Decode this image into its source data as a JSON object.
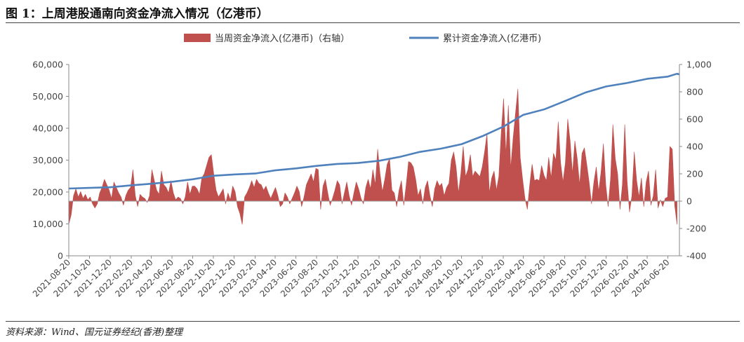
{
  "figure": {
    "title": "图 1：上周港股通南向资金净流入情况（亿港币）",
    "source": "资料来源：Wind、国元证券经纪(香港)整理"
  },
  "chart_data": {
    "type": "bar+line",
    "legend_position": "top",
    "grid": false,
    "colors": {
      "bar": "#C0504D",
      "line": "#4F81BD",
      "axis": "#888888"
    },
    "series": [
      {
        "name": "当周资金净流入(亿港币)（右轴）",
        "type": "area",
        "axis": "right"
      },
      {
        "name": "累计资金净流入(亿港币)",
        "type": "line",
        "axis": "left"
      }
    ],
    "left_axis": {
      "min": 0,
      "max": 60000,
      "ticks": [
        "0",
        "10,000",
        "20,000",
        "30,000",
        "40,000",
        "50,000",
        "60,000"
      ]
    },
    "right_axis": {
      "min": -400,
      "max": 1000,
      "ticks": [
        "-400",
        "-200",
        "0",
        "200",
        "400",
        "600",
        "800",
        "1,000"
      ]
    },
    "x_ticks": [
      "2021-08-20",
      "2021-10-20",
      "2021-12-20",
      "2022-02-20",
      "2022-04-20",
      "2022-06-20",
      "2022-08-20",
      "2022-10-20",
      "2022-12-20",
      "2023-02-20",
      "2023-04-20",
      "2023-06-20",
      "2023-08-20",
      "2023-10-20",
      "2023-12-20",
      "2024-02-20",
      "2024-04-20",
      "2024-06-20",
      "2024-08-20",
      "2024-10-20",
      "2024-12-20",
      "2025-02-20",
      "2025-04-20",
      "2025-06-20",
      "2025-08-20",
      "2025-10-20",
      "2025-12-20",
      "2026-02-20",
      "2026-04-20",
      "2026-06-20"
    ],
    "x_range": [
      "2021-08-20",
      "2026-07-24"
    ],
    "weekly_flow": [
      [
        "2021-08-20",
        -170
      ],
      [
        "2021-08-27",
        -100
      ],
      [
        "2021-09-03",
        40
      ],
      [
        "2021-09-10",
        90
      ],
      [
        "2021-09-17",
        30
      ],
      [
        "2021-09-24",
        70
      ],
      [
        "2021-10-01",
        20
      ],
      [
        "2021-10-08",
        50
      ],
      [
        "2021-10-15",
        10
      ],
      [
        "2021-10-22",
        30
      ],
      [
        "2021-10-29",
        -20
      ],
      [
        "2021-11-05",
        -50
      ],
      [
        "2021-11-12",
        -20
      ],
      [
        "2021-11-19",
        60
      ],
      [
        "2021-11-26",
        100
      ],
      [
        "2021-12-03",
        160
      ],
      [
        "2021-12-10",
        120
      ],
      [
        "2021-12-17",
        80
      ],
      [
        "2021-12-24",
        20
      ],
      [
        "2021-12-31",
        140
      ],
      [
        "2022-01-07",
        100
      ],
      [
        "2022-01-14",
        60
      ],
      [
        "2022-01-21",
        30
      ],
      [
        "2022-01-28",
        -30
      ],
      [
        "2022-02-04",
        40
      ],
      [
        "2022-02-11",
        80
      ],
      [
        "2022-02-18",
        100
      ],
      [
        "2022-02-25",
        230
      ],
      [
        "2022-03-04",
        40
      ],
      [
        "2022-03-11",
        -40
      ],
      [
        "2022-03-18",
        50
      ],
      [
        "2022-03-25",
        30
      ],
      [
        "2022-04-01",
        20
      ],
      [
        "2022-04-08",
        -10
      ],
      [
        "2022-04-15",
        40
      ],
      [
        "2022-04-22",
        230
      ],
      [
        "2022-04-29",
        150
      ],
      [
        "2022-05-06",
        80
      ],
      [
        "2022-05-13",
        50
      ],
      [
        "2022-05-20",
        220
      ],
      [
        "2022-05-27",
        120
      ],
      [
        "2022-06-03",
        100
      ],
      [
        "2022-06-10",
        60
      ],
      [
        "2022-06-17",
        150
      ],
      [
        "2022-06-24",
        60
      ],
      [
        "2022-07-01",
        10
      ],
      [
        "2022-07-08",
        30
      ],
      [
        "2022-07-15",
        20
      ],
      [
        "2022-07-22",
        -20
      ],
      [
        "2022-07-29",
        30
      ],
      [
        "2022-08-05",
        140
      ],
      [
        "2022-08-12",
        50
      ],
      [
        "2022-08-19",
        110
      ],
      [
        "2022-08-26",
        110
      ],
      [
        "2022-09-02",
        90
      ],
      [
        "2022-09-09",
        50
      ],
      [
        "2022-09-16",
        170
      ],
      [
        "2022-09-23",
        200
      ],
      [
        "2022-09-30",
        260
      ],
      [
        "2022-10-07",
        320
      ],
      [
        "2022-10-14",
        340
      ],
      [
        "2022-10-21",
        200
      ],
      [
        "2022-10-28",
        80
      ],
      [
        "2022-11-04",
        30
      ],
      [
        "2022-11-11",
        60
      ],
      [
        "2022-11-18",
        90
      ],
      [
        "2022-11-25",
        -20
      ],
      [
        "2022-12-02",
        60
      ],
      [
        "2022-12-09",
        10
      ],
      [
        "2022-12-16",
        110
      ],
      [
        "2022-12-23",
        70
      ],
      [
        "2022-12-30",
        -40
      ],
      [
        "2023-01-06",
        -90
      ],
      [
        "2023-01-13",
        -170
      ],
      [
        "2023-01-20",
        30
      ],
      [
        "2023-01-27",
        60
      ],
      [
        "2023-02-03",
        100
      ],
      [
        "2023-02-10",
        150
      ],
      [
        "2023-02-17",
        100
      ],
      [
        "2023-02-24",
        160
      ],
      [
        "2023-03-03",
        130
      ],
      [
        "2023-03-10",
        120
      ],
      [
        "2023-03-17",
        80
      ],
      [
        "2023-03-24",
        110
      ],
      [
        "2023-03-31",
        60
      ],
      [
        "2023-04-07",
        20
      ],
      [
        "2023-04-14",
        60
      ],
      [
        "2023-04-21",
        100
      ],
      [
        "2023-04-28",
        40
      ],
      [
        "2023-05-05",
        -40
      ],
      [
        "2023-05-12",
        -20
      ],
      [
        "2023-05-19",
        60
      ],
      [
        "2023-05-26",
        30
      ],
      [
        "2023-06-02",
        -20
      ],
      [
        "2023-06-09",
        20
      ],
      [
        "2023-06-16",
        60
      ],
      [
        "2023-06-23",
        110
      ],
      [
        "2023-06-30",
        70
      ],
      [
        "2023-07-07",
        -40
      ],
      [
        "2023-07-14",
        30
      ],
      [
        "2023-07-21",
        120
      ],
      [
        "2023-07-28",
        160
      ],
      [
        "2023-08-04",
        200
      ],
      [
        "2023-08-11",
        140
      ],
      [
        "2023-08-18",
        240
      ],
      [
        "2023-08-25",
        230
      ],
      [
        "2023-09-01",
        -60
      ],
      [
        "2023-09-08",
        110
      ],
      [
        "2023-09-15",
        160
      ],
      [
        "2023-09-22",
        60
      ],
      [
        "2023-09-29",
        -30
      ],
      [
        "2023-10-06",
        20
      ],
      [
        "2023-10-13",
        80
      ],
      [
        "2023-10-20",
        150
      ],
      [
        "2023-10-27",
        120
      ],
      [
        "2023-11-03",
        -20
      ],
      [
        "2023-11-10",
        60
      ],
      [
        "2023-11-17",
        140
      ],
      [
        "2023-11-24",
        40
      ],
      [
        "2023-12-01",
        -30
      ],
      [
        "2023-12-08",
        60
      ],
      [
        "2023-12-15",
        140
      ],
      [
        "2023-12-22",
        90
      ],
      [
        "2023-12-29",
        20
      ],
      [
        "2024-01-05",
        -20
      ],
      [
        "2024-01-12",
        100
      ],
      [
        "2024-01-19",
        160
      ],
      [
        "2024-01-26",
        90
      ],
      [
        "2024-02-02",
        230
      ],
      [
        "2024-02-09",
        120
      ],
      [
        "2024-02-16",
        380
      ],
      [
        "2024-02-23",
        200
      ],
      [
        "2024-03-01",
        70
      ],
      [
        "2024-03-08",
        160
      ],
      [
        "2024-03-15",
        270
      ],
      [
        "2024-03-22",
        310
      ],
      [
        "2024-03-29",
        80
      ],
      [
        "2024-04-05",
        60
      ],
      [
        "2024-04-12",
        -40
      ],
      [
        "2024-04-19",
        80
      ],
      [
        "2024-04-26",
        150
      ],
      [
        "2024-05-03",
        -30
      ],
      [
        "2024-05-10",
        120
      ],
      [
        "2024-05-17",
        290
      ],
      [
        "2024-05-24",
        280
      ],
      [
        "2024-05-31",
        250
      ],
      [
        "2024-06-07",
        160
      ],
      [
        "2024-06-14",
        40
      ],
      [
        "2024-06-21",
        90
      ],
      [
        "2024-06-28",
        -20
      ],
      [
        "2024-07-05",
        100
      ],
      [
        "2024-07-12",
        150
      ],
      [
        "2024-07-19",
        40
      ],
      [
        "2024-07-26",
        -40
      ],
      [
        "2024-08-02",
        90
      ],
      [
        "2024-08-09",
        150
      ],
      [
        "2024-08-16",
        110
      ],
      [
        "2024-08-23",
        130
      ],
      [
        "2024-08-30",
        40
      ],
      [
        "2024-09-06",
        100
      ],
      [
        "2024-09-13",
        130
      ],
      [
        "2024-09-20",
        300
      ],
      [
        "2024-09-27",
        360
      ],
      [
        "2024-10-04",
        250
      ],
      [
        "2024-10-11",
        60
      ],
      [
        "2024-10-18",
        200
      ],
      [
        "2024-10-25",
        400
      ],
      [
        "2024-11-01",
        180
      ],
      [
        "2024-11-08",
        230
      ],
      [
        "2024-11-15",
        340
      ],
      [
        "2024-11-22",
        180
      ],
      [
        "2024-11-29",
        220
      ],
      [
        "2024-12-06",
        200
      ],
      [
        "2024-12-13",
        180
      ],
      [
        "2024-12-20",
        250
      ],
      [
        "2024-12-27",
        360
      ],
      [
        "2025-01-03",
        490
      ],
      [
        "2025-01-10",
        60
      ],
      [
        "2025-01-17",
        170
      ],
      [
        "2025-01-24",
        220
      ],
      [
        "2025-01-31",
        80
      ],
      [
        "2025-02-07",
        180
      ],
      [
        "2025-02-14",
        500
      ],
      [
        "2025-02-21",
        750
      ],
      [
        "2025-02-28",
        340
      ],
      [
        "2025-03-07",
        700
      ],
      [
        "2025-03-14",
        240
      ],
      [
        "2025-03-21",
        460
      ],
      [
        "2025-03-28",
        640
      ],
      [
        "2025-04-04",
        820
      ],
      [
        "2025-04-11",
        320
      ],
      [
        "2025-04-18",
        160
      ],
      [
        "2025-04-25",
        20
      ],
      [
        "2025-05-02",
        -60
      ],
      [
        "2025-05-09",
        120
      ],
      [
        "2025-05-16",
        270
      ],
      [
        "2025-05-23",
        150
      ],
      [
        "2025-05-30",
        160
      ],
      [
        "2025-06-06",
        150
      ],
      [
        "2025-06-13",
        260
      ],
      [
        "2025-06-20",
        190
      ],
      [
        "2025-06-27",
        150
      ],
      [
        "2025-07-04",
        320
      ],
      [
        "2025-07-11",
        170
      ],
      [
        "2025-07-18",
        350
      ],
      [
        "2025-07-25",
        300
      ],
      [
        "2025-08-01",
        580
      ],
      [
        "2025-08-08",
        280
      ],
      [
        "2025-08-15",
        140
      ],
      [
        "2025-08-22",
        280
      ],
      [
        "2025-08-29",
        600
      ],
      [
        "2025-09-05",
        440
      ],
      [
        "2025-09-12",
        200
      ],
      [
        "2025-09-19",
        440
      ],
      [
        "2025-09-26",
        310
      ],
      [
        "2025-10-03",
        120
      ],
      [
        "2025-10-10",
        350
      ],
      [
        "2025-10-17",
        390
      ],
      [
        "2025-10-24",
        270
      ],
      [
        "2025-10-31",
        140
      ],
      [
        "2025-11-07",
        -20
      ],
      [
        "2025-11-14",
        140
      ],
      [
        "2025-11-21",
        250
      ],
      [
        "2025-11-28",
        70
      ],
      [
        "2025-12-05",
        210
      ],
      [
        "2025-12-12",
        420
      ],
      [
        "2025-12-19",
        120
      ],
      [
        "2025-12-26",
        -40
      ],
      [
        "2026-01-02",
        160
      ],
      [
        "2026-01-09",
        560
      ],
      [
        "2026-01-16",
        310
      ],
      [
        "2026-01-23",
        200
      ],
      [
        "2026-01-30",
        -60
      ],
      [
        "2026-02-06",
        120
      ],
      [
        "2026-02-13",
        560
      ],
      [
        "2026-02-20",
        140
      ],
      [
        "2026-02-27",
        -80
      ],
      [
        "2026-03-06",
        40
      ],
      [
        "2026-03-13",
        360
      ],
      [
        "2026-03-20",
        150
      ],
      [
        "2026-03-27",
        30
      ],
      [
        "2026-04-03",
        170
      ],
      [
        "2026-04-10",
        -40
      ],
      [
        "2026-04-17",
        140
      ],
      [
        "2026-04-24",
        220
      ],
      [
        "2026-05-01",
        -30
      ],
      [
        "2026-05-08",
        40
      ],
      [
        "2026-05-15",
        230
      ],
      [
        "2026-05-22",
        -50
      ],
      [
        "2026-05-29",
        10
      ],
      [
        "2026-06-05",
        -40
      ],
      [
        "2026-06-12",
        20
      ],
      [
        "2026-06-19",
        30
      ],
      [
        "2026-06-26",
        400
      ],
      [
        "2026-07-03",
        380
      ],
      [
        "2026-07-10",
        -30
      ],
      [
        "2026-07-17",
        -170
      ]
    ],
    "cumulative": [
      [
        "2021-08-20",
        21100
      ],
      [
        "2021-10-20",
        21300
      ],
      [
        "2021-12-20",
        21500
      ],
      [
        "2022-02-20",
        22100
      ],
      [
        "2022-04-20",
        22600
      ],
      [
        "2022-06-20",
        23200
      ],
      [
        "2022-08-20",
        24000
      ],
      [
        "2022-10-20",
        25100
      ],
      [
        "2022-12-20",
        25500
      ],
      [
        "2023-02-20",
        25800
      ],
      [
        "2023-04-20",
        26800
      ],
      [
        "2023-06-20",
        27400
      ],
      [
        "2023-08-20",
        28200
      ],
      [
        "2023-10-20",
        28800
      ],
      [
        "2023-12-20",
        29100
      ],
      [
        "2024-02-20",
        29800
      ],
      [
        "2024-04-20",
        31000
      ],
      [
        "2024-06-20",
        32600
      ],
      [
        "2024-08-20",
        33600
      ],
      [
        "2024-10-20",
        35000
      ],
      [
        "2024-12-20",
        37500
      ],
      [
        "2025-02-20",
        40500
      ],
      [
        "2025-04-20",
        44200
      ],
      [
        "2025-06-20",
        45900
      ],
      [
        "2025-08-20",
        48500
      ],
      [
        "2025-10-20",
        51200
      ],
      [
        "2025-12-20",
        53100
      ],
      [
        "2026-02-20",
        54200
      ],
      [
        "2026-04-20",
        55500
      ],
      [
        "2026-06-20",
        56200
      ],
      [
        "2026-07-17",
        57100
      ],
      [
        "2026-07-24",
        56900
      ]
    ]
  }
}
